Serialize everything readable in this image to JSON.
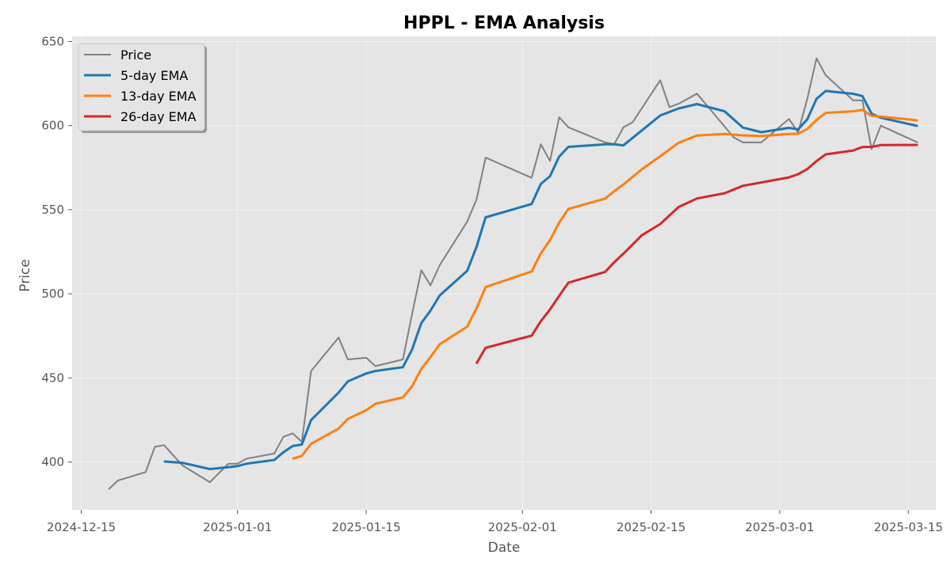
{
  "chart_data": {
    "type": "line",
    "title": "HPPL - EMA Analysis",
    "xlabel": "Date",
    "ylabel": "Price",
    "ylim": [
      371.55,
      653.05
    ],
    "xlim": [
      "2024-12-14",
      "2025-03-18"
    ],
    "x_ticks": [
      "2024-12-15",
      "2025-01-01",
      "2025-01-15",
      "2025-02-01",
      "2025-02-15",
      "2025-03-01",
      "2025-03-15"
    ],
    "y_ticks": [
      400,
      450,
      500,
      550,
      600,
      650
    ],
    "grid": true,
    "legend_position": "top-left",
    "series": [
      {
        "name": "Price",
        "color": "#808080",
        "points": [
          [
            "2024-12-18",
            384
          ],
          [
            "2024-12-19",
            389
          ],
          [
            "2024-12-22",
            394
          ],
          [
            "2024-12-23",
            409
          ],
          [
            "2024-12-24",
            410
          ],
          [
            "2024-12-26",
            398
          ],
          [
            "2024-12-29",
            388
          ],
          [
            "2024-12-31",
            399
          ],
          [
            "2025-01-01",
            399
          ],
          [
            "2025-01-02",
            402
          ],
          [
            "2025-01-05",
            405
          ],
          [
            "2025-01-06",
            415
          ],
          [
            "2025-01-07",
            417
          ],
          [
            "2025-01-08",
            412
          ],
          [
            "2025-01-09",
            454
          ],
          [
            "2025-01-12",
            474
          ],
          [
            "2025-01-13",
            461
          ],
          [
            "2025-01-15",
            462
          ],
          [
            "2025-01-16",
            457
          ],
          [
            "2025-01-19",
            461
          ],
          [
            "2025-01-20",
            488
          ],
          [
            "2025-01-21",
            514
          ],
          [
            "2025-01-22",
            505
          ],
          [
            "2025-01-23",
            517
          ],
          [
            "2025-01-26",
            543
          ],
          [
            "2025-01-27",
            556
          ],
          [
            "2025-01-28",
            581
          ],
          [
            "2025-02-02",
            569
          ],
          [
            "2025-02-03",
            589
          ],
          [
            "2025-02-04",
            579
          ],
          [
            "2025-02-05",
            605
          ],
          [
            "2025-02-06",
            599
          ],
          [
            "2025-02-10",
            590
          ],
          [
            "2025-02-11",
            589
          ],
          [
            "2025-02-12",
            599
          ],
          [
            "2025-02-13",
            602
          ],
          [
            "2025-02-16",
            627
          ],
          [
            "2025-02-17",
            611
          ],
          [
            "2025-02-18",
            613
          ],
          [
            "2025-02-20",
            619
          ],
          [
            "2025-02-24",
            593
          ],
          [
            "2025-02-25",
            590
          ],
          [
            "2025-02-27",
            590
          ],
          [
            "2025-03-02",
            604
          ],
          [
            "2025-03-03",
            596
          ],
          [
            "2025-03-04",
            616
          ],
          [
            "2025-03-05",
            640
          ],
          [
            "2025-03-06",
            630
          ],
          [
            "2025-03-09",
            615
          ],
          [
            "2025-03-10",
            615
          ],
          [
            "2025-03-11",
            586
          ],
          [
            "2025-03-12",
            600
          ],
          [
            "2025-03-16",
            590
          ]
        ]
      },
      {
        "name": "5-day EMA",
        "color": "#1f77b4",
        "points": [
          [
            "2024-12-24",
            400.3
          ],
          [
            "2024-12-26",
            399.5
          ],
          [
            "2024-12-29",
            395.8
          ],
          [
            "2024-12-31",
            396.9
          ],
          [
            "2025-01-01",
            397.6
          ],
          [
            "2025-01-02",
            399.0
          ],
          [
            "2025-01-05",
            401.2
          ],
          [
            "2025-01-06",
            405.8
          ],
          [
            "2025-01-07",
            409.5
          ],
          [
            "2025-01-08",
            410.4
          ],
          [
            "2025-01-09",
            424.9
          ],
          [
            "2025-01-12",
            441.3
          ],
          [
            "2025-01-13",
            447.9
          ],
          [
            "2025-01-15",
            452.6
          ],
          [
            "2025-01-16",
            454.1
          ],
          [
            "2025-01-19",
            456.4
          ],
          [
            "2025-01-20",
            466.9
          ],
          [
            "2025-01-21",
            482.6
          ],
          [
            "2025-01-22",
            490.0
          ],
          [
            "2025-01-23",
            499.0
          ],
          [
            "2025-01-26",
            513.7
          ],
          [
            "2025-01-27",
            527.8
          ],
          [
            "2025-01-28",
            545.5
          ],
          [
            "2025-02-02",
            553.4
          ],
          [
            "2025-02-03",
            565.3
          ],
          [
            "2025-02-04",
            569.9
          ],
          [
            "2025-02-05",
            581.6
          ],
          [
            "2025-02-06",
            587.4
          ],
          [
            "2025-02-10",
            588.9
          ],
          [
            "2025-02-11",
            588.9
          ],
          [
            "2025-02-12",
            588.3
          ],
          [
            "2025-02-16",
            606.0
          ],
          [
            "2025-02-18",
            610.2
          ],
          [
            "2025-02-20",
            612.8
          ],
          [
            "2025-02-23",
            608.5
          ],
          [
            "2025-02-25",
            598.8
          ],
          [
            "2025-02-27",
            596.1
          ],
          [
            "2025-03-02",
            598.7
          ],
          [
            "2025-03-03",
            597.8
          ],
          [
            "2025-03-04",
            603.8
          ],
          [
            "2025-03-05",
            615.9
          ],
          [
            "2025-03-06",
            620.6
          ],
          [
            "2025-03-09",
            618.9
          ],
          [
            "2025-03-10",
            617.6
          ],
          [
            "2025-03-11",
            607.1
          ],
          [
            "2025-03-12",
            604.7
          ],
          [
            "2025-03-16",
            599.8
          ]
        ]
      },
      {
        "name": "13-day EMA",
        "color": "#ff7f0e",
        "points": [
          [
            "2025-01-07",
            402.0
          ],
          [
            "2025-01-08",
            403.6
          ],
          [
            "2025-01-09",
            410.8
          ],
          [
            "2025-01-12",
            419.9
          ],
          [
            "2025-01-13",
            425.6
          ],
          [
            "2025-01-15",
            430.8
          ],
          [
            "2025-01-16",
            434.6
          ],
          [
            "2025-01-19",
            438.4
          ],
          [
            "2025-01-20",
            445.0
          ],
          [
            "2025-01-21",
            455.3
          ],
          [
            "2025-01-22",
            462.4
          ],
          [
            "2025-01-23",
            470.0
          ],
          [
            "2025-01-26",
            480.5
          ],
          [
            "2025-01-27",
            491.3
          ],
          [
            "2025-01-28",
            504.0
          ],
          [
            "2025-02-02",
            513.3
          ],
          [
            "2025-02-03",
            524.0
          ],
          [
            "2025-02-04",
            531.9
          ],
          [
            "2025-02-05",
            542.4
          ],
          [
            "2025-02-06",
            550.5
          ],
          [
            "2025-02-10",
            556.6
          ],
          [
            "2025-02-11",
            561.0
          ],
          [
            "2025-02-12",
            565.0
          ],
          [
            "2025-02-14",
            574.0
          ],
          [
            "2025-02-16",
            581.8
          ],
          [
            "2025-02-18",
            589.8
          ],
          [
            "2025-02-20",
            594.1
          ],
          [
            "2025-02-23",
            595.0
          ],
          [
            "2025-02-25",
            594.2
          ],
          [
            "2025-02-27",
            593.8
          ],
          [
            "2025-03-02",
            595.0
          ],
          [
            "2025-03-03",
            595.2
          ],
          [
            "2025-03-04",
            598.0
          ],
          [
            "2025-03-05",
            603.4
          ],
          [
            "2025-03-06",
            607.6
          ],
          [
            "2025-03-09",
            608.5
          ],
          [
            "2025-03-10",
            609.4
          ],
          [
            "2025-03-11",
            605.9
          ],
          [
            "2025-03-12",
            605.4
          ],
          [
            "2025-03-16",
            603.1
          ]
        ]
      },
      {
        "name": "26-day EMA",
        "color": "#d62728",
        "points": [
          [
            "2025-01-27",
            458.6
          ],
          [
            "2025-01-28",
            467.9
          ],
          [
            "2025-02-02",
            475.1
          ],
          [
            "2025-02-03",
            483.7
          ],
          [
            "2025-02-04",
            490.7
          ],
          [
            "2025-02-05",
            498.8
          ],
          [
            "2025-02-06",
            506.6
          ],
          [
            "2025-02-10",
            513.0
          ],
          [
            "2025-02-11",
            518.8
          ],
          [
            "2025-02-12",
            523.9
          ],
          [
            "2025-02-14",
            534.8
          ],
          [
            "2025-02-16",
            541.5
          ],
          [
            "2025-02-18",
            551.6
          ],
          [
            "2025-02-20",
            556.7
          ],
          [
            "2025-02-23",
            559.8
          ],
          [
            "2025-02-25",
            564.2
          ],
          [
            "2025-03-02",
            569.2
          ],
          [
            "2025-03-03",
            571.1
          ],
          [
            "2025-03-04",
            574.2
          ],
          [
            "2025-03-05",
            578.9
          ],
          [
            "2025-03-06",
            582.9
          ],
          [
            "2025-03-09",
            585.2
          ],
          [
            "2025-03-10",
            587.3
          ],
          [
            "2025-03-11",
            587.4
          ],
          [
            "2025-03-12",
            588.4
          ],
          [
            "2025-03-16",
            588.5
          ]
        ]
      }
    ]
  }
}
